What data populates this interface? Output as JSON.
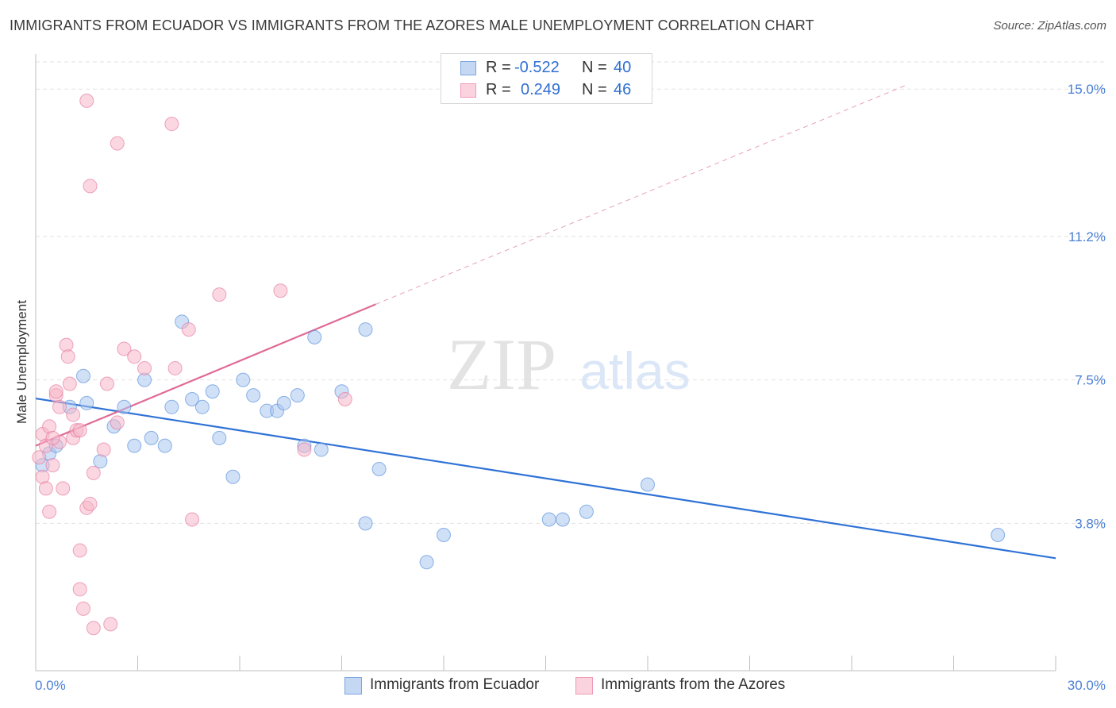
{
  "title": "IMMIGRANTS FROM ECUADOR VS IMMIGRANTS FROM THE AZORES MALE UNEMPLOYMENT CORRELATION CHART",
  "source": "Source: ZipAtlas.com",
  "watermark": {
    "zip": "ZIP",
    "atlas": "atlas"
  },
  "legend": {
    "rows": [
      {
        "r_label": "R =",
        "r_value": "-0.522",
        "n_label": "N =",
        "n_value": "40",
        "color": "#a9c6ee"
      },
      {
        "r_label": "R =",
        "r_value": "0.249",
        "n_label": "N =",
        "n_value": "46",
        "color": "#f5b6c8"
      }
    ]
  },
  "bottom_legend": [
    {
      "label": "Immigrants from Ecuador",
      "color": "#a9c6ee"
    },
    {
      "label": "Immigrants from the Azores",
      "color": "#f5b6c8"
    }
  ],
  "chart_data": {
    "type": "scatter",
    "title": "IMMIGRANTS FROM ECUADOR VS IMMIGRANTS FROM THE AZORES MALE UNEMPLOYMENT CORRELATION CHART",
    "xlabel": "",
    "ylabel": "Male Unemployment",
    "xlim": [
      0,
      30
    ],
    "ylim": [
      0,
      15.7
    ],
    "x_tick_labels": [
      "0.0%",
      "30.0%"
    ],
    "y_ticks": [
      3.8,
      7.5,
      11.2,
      15.0
    ],
    "y_tick_labels": [
      "3.8%",
      "7.5%",
      "11.2%",
      "15.0%"
    ],
    "grid": true,
    "series": [
      {
        "name": "Immigrants from Ecuador",
        "color": "#4a86d8",
        "fill": "#a9c6ee",
        "points": [
          [
            0.2,
            5.3
          ],
          [
            0.4,
            5.6
          ],
          [
            0.6,
            5.8
          ],
          [
            1.0,
            6.8
          ],
          [
            1.4,
            7.6
          ],
          [
            1.5,
            6.9
          ],
          [
            1.9,
            5.4
          ],
          [
            2.3,
            6.3
          ],
          [
            2.6,
            6.8
          ],
          [
            2.9,
            5.8
          ],
          [
            3.2,
            7.5
          ],
          [
            3.4,
            6.0
          ],
          [
            3.8,
            5.8
          ],
          [
            4.0,
            6.8
          ],
          [
            4.3,
            9.0
          ],
          [
            4.6,
            7.0
          ],
          [
            4.9,
            6.8
          ],
          [
            5.2,
            7.2
          ],
          [
            5.4,
            6.0
          ],
          [
            5.8,
            5.0
          ],
          [
            6.1,
            7.5
          ],
          [
            6.4,
            7.1
          ],
          [
            6.8,
            6.7
          ],
          [
            7.1,
            6.7
          ],
          [
            7.3,
            6.9
          ],
          [
            7.7,
            7.1
          ],
          [
            7.9,
            5.8
          ],
          [
            8.2,
            8.6
          ],
          [
            8.4,
            5.7
          ],
          [
            9.0,
            7.2
          ],
          [
            9.7,
            8.8
          ],
          [
            9.7,
            3.8
          ],
          [
            10.1,
            5.2
          ],
          [
            11.5,
            2.8
          ],
          [
            12.0,
            3.5
          ],
          [
            15.1,
            3.9
          ],
          [
            15.5,
            3.9
          ],
          [
            16.2,
            4.1
          ],
          [
            18.0,
            4.8
          ],
          [
            28.3,
            3.5
          ]
        ],
        "trend": {
          "x": [
            0.0,
            30.0
          ],
          "y": [
            7.02,
            2.9
          ]
        }
      },
      {
        "name": "Immigrants from the Azores",
        "color": "#e56f99",
        "fill": "#f5b6c8",
        "points": [
          [
            0.1,
            5.5
          ],
          [
            0.2,
            6.1
          ],
          [
            0.2,
            5.0
          ],
          [
            0.3,
            4.7
          ],
          [
            0.4,
            4.1
          ],
          [
            0.4,
            6.3
          ],
          [
            0.5,
            5.3
          ],
          [
            0.6,
            7.1
          ],
          [
            0.6,
            7.2
          ],
          [
            0.7,
            6.8
          ],
          [
            0.8,
            4.7
          ],
          [
            0.9,
            8.4
          ],
          [
            0.95,
            8.1
          ],
          [
            1.0,
            7.4
          ],
          [
            1.1,
            6.0
          ],
          [
            1.2,
            6.2
          ],
          [
            1.3,
            3.1
          ],
          [
            1.3,
            2.1
          ],
          [
            1.4,
            1.6
          ],
          [
            1.5,
            14.7
          ],
          [
            1.5,
            4.2
          ],
          [
            1.6,
            4.3
          ],
          [
            1.6,
            12.5
          ],
          [
            1.7,
            5.1
          ],
          [
            1.7,
            1.1
          ],
          [
            2.1,
            7.4
          ],
          [
            2.2,
            1.2
          ],
          [
            2.4,
            6.4
          ],
          [
            2.4,
            13.6
          ],
          [
            2.6,
            8.3
          ],
          [
            2.9,
            8.1
          ],
          [
            3.2,
            7.8
          ],
          [
            4.0,
            14.1
          ],
          [
            4.1,
            7.8
          ],
          [
            4.5,
            8.8
          ],
          [
            4.6,
            3.9
          ],
          [
            5.4,
            9.7
          ],
          [
            7.2,
            9.8
          ],
          [
            7.9,
            5.7
          ],
          [
            9.1,
            7.0
          ],
          [
            0.3,
            5.8
          ],
          [
            1.1,
            6.6
          ],
          [
            0.7,
            5.9
          ],
          [
            2.0,
            5.7
          ],
          [
            0.5,
            6.0
          ],
          [
            1.3,
            6.2
          ]
        ],
        "trend": {
          "x": [
            0.0,
            10.0
          ],
          "y": [
            5.8,
            9.45
          ]
        },
        "trend_extension": {
          "x": [
            10.0,
            25.6
          ],
          "y": [
            9.45,
            15.1
          ]
        }
      }
    ]
  }
}
